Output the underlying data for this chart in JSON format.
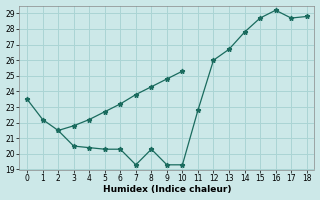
{
  "x_lower": [
    0,
    1,
    2,
    3,
    4,
    5,
    6,
    7,
    8,
    9,
    10,
    11,
    12,
    13,
    14,
    15,
    16,
    17,
    18
  ],
  "y_lower": [
    23.5,
    22.2,
    21.5,
    20.5,
    20.4,
    20.3,
    20.3,
    19.3,
    20.3,
    19.3,
    19.3,
    22.8,
    26.0,
    26.7,
    27.8,
    28.7,
    29.2,
    28.7,
    28.8
  ],
  "x_upper": [
    2,
    3,
    4,
    5,
    6,
    7,
    8,
    9,
    10
  ],
  "y_upper": [
    21.5,
    21.8,
    22.2,
    22.7,
    23.2,
    23.8,
    24.3,
    24.8,
    25.3
  ],
  "line_color": "#1a6b5e",
  "bg_color": "#cce8e8",
  "grid_color": "#aad4d4",
  "xlabel": "Humidex (Indice chaleur)",
  "ylim": [
    19,
    29.5
  ],
  "xlim": [
    -0.5,
    18.5
  ],
  "yticks": [
    19,
    20,
    21,
    22,
    23,
    24,
    25,
    26,
    27,
    28,
    29
  ],
  "xticks": [
    0,
    1,
    2,
    3,
    4,
    5,
    6,
    7,
    8,
    9,
    10,
    11,
    12,
    13,
    14,
    15,
    16,
    17,
    18
  ]
}
